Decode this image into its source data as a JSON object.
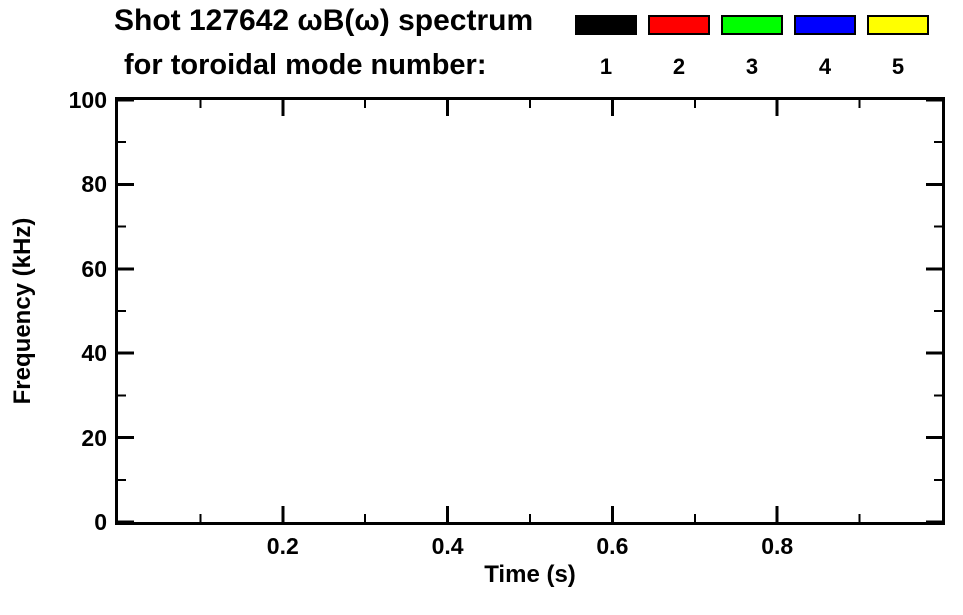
{
  "header": {
    "title": "Shot 127642 ωB(ω) spectrum",
    "subtitle": "for toroidal mode number:",
    "legend": [
      {
        "label": "1",
        "color": "#000000"
      },
      {
        "label": "2",
        "color": "#ff0000"
      },
      {
        "label": "3",
        "color": "#00ff00"
      },
      {
        "label": "4",
        "color": "#0000ff"
      },
      {
        "label": "5",
        "color": "#ffff00"
      }
    ]
  },
  "chart_data": {
    "type": "scatter",
    "title": "Shot 127642 ωB(ω) spectrum for toroidal mode number: 1 2 3 4 5",
    "xlabel": "Time (s)",
    "ylabel": "Frequency (kHz)",
    "xlim": [
      0.0,
      1.0
    ],
    "ylim": [
      0,
      100
    ],
    "x_ticks": [
      0.2,
      0.4,
      0.6,
      0.8
    ],
    "x_tick_labels": [
      "0.2",
      "0.4",
      "0.6",
      "0.8"
    ],
    "x_minor_step": 0.1,
    "y_ticks": [
      0,
      20,
      40,
      60,
      80,
      100
    ],
    "y_tick_labels": [
      "0",
      "20",
      "40",
      "60",
      "80",
      "100"
    ],
    "y_minor_step": 10,
    "grid": false,
    "legend_position": "top-right",
    "axis_color": "#000000",
    "background": "#ffffff",
    "series": [
      {
        "name": "1",
        "color": "#000000",
        "points": []
      },
      {
        "name": "2",
        "color": "#ff0000",
        "points": []
      },
      {
        "name": "3",
        "color": "#00ff00",
        "points": []
      },
      {
        "name": "4",
        "color": "#0000ff",
        "points": []
      },
      {
        "name": "5",
        "color": "#ffff00",
        "points": []
      }
    ]
  }
}
